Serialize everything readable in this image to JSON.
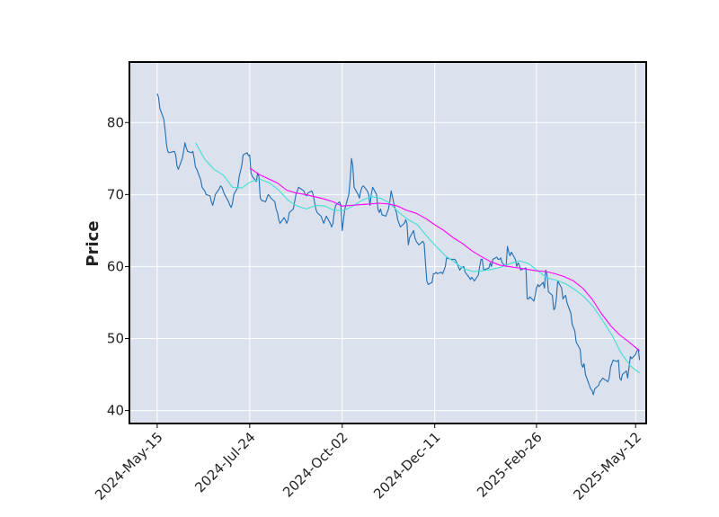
{
  "chart_data": {
    "type": "line",
    "title": "",
    "xlabel": "",
    "ylabel": "Price",
    "ylim": [
      38.2,
      88.4
    ],
    "xlim": [
      "2024-04-24",
      "2025-05-20"
    ],
    "x_tick_labels": [
      "2024-May-15",
      "2024-Jul-24",
      "2024-Oct-02",
      "2024-Dec-11",
      "2025-Feb-26",
      "2025-May-12"
    ],
    "x_tick_dates": [
      "2024-05-15",
      "2024-07-24",
      "2024-10-02",
      "2024-12-11",
      "2025-02-26",
      "2025-05-12"
    ],
    "y_ticks": [
      40,
      50,
      60,
      70,
      80
    ],
    "grid": true,
    "colors": {
      "background": "#dce1ee",
      "grid": "#ffffff",
      "frame": "#000000",
      "price": "#1f6fb4",
      "ma_short": "#40e0d0",
      "ma_long": "#ff00ff"
    },
    "series": [
      {
        "x": [
          "2024-05-15",
          "2024-05-16",
          "2024-05-17",
          "2024-05-20",
          "2024-05-21",
          "2024-05-22",
          "2024-05-23",
          "2024-05-24",
          "2024-05-28",
          "2024-05-29",
          "2024-05-30",
          "2024-05-31",
          "2024-06-03",
          "2024-06-04",
          "2024-06-05",
          "2024-06-06",
          "2024-06-07",
          "2024-06-10",
          "2024-06-11",
          "2024-06-12",
          "2024-06-13",
          "2024-06-14",
          "2024-06-17",
          "2024-06-18",
          "2024-06-20",
          "2024-06-21",
          "2024-06-24",
          "2024-06-25",
          "2024-06-26",
          "2024-06-27",
          "2024-06-28",
          "2024-07-01",
          "2024-07-02",
          "2024-07-03",
          "2024-07-05",
          "2024-07-08",
          "2024-07-09",
          "2024-07-10",
          "2024-07-11",
          "2024-07-12",
          "2024-07-15",
          "2024-07-16",
          "2024-07-17",
          "2024-07-18",
          "2024-07-19",
          "2024-07-22",
          "2024-07-23",
          "2024-07-24",
          "2024-07-25",
          "2024-07-26",
          "2024-07-29",
          "2024-07-30",
          "2024-07-31",
          "2024-08-01",
          "2024-08-02",
          "2024-08-05",
          "2024-08-06",
          "2024-08-07",
          "2024-08-08",
          "2024-08-09",
          "2024-08-12",
          "2024-08-13",
          "2024-08-14",
          "2024-08-15",
          "2024-08-16",
          "2024-08-19",
          "2024-08-20",
          "2024-08-21",
          "2024-08-22",
          "2024-08-23",
          "2024-08-26",
          "2024-08-27",
          "2024-08-28",
          "2024-08-29",
          "2024-08-30",
          "2024-09-03",
          "2024-09-04",
          "2024-09-05",
          "2024-09-06",
          "2024-09-09",
          "2024-09-10",
          "2024-09-11",
          "2024-09-12",
          "2024-09-13",
          "2024-09-16",
          "2024-09-17",
          "2024-09-18",
          "2024-09-19",
          "2024-09-20",
          "2024-09-23",
          "2024-09-24",
          "2024-09-25",
          "2024-09-26",
          "2024-09-27",
          "2024-09-30",
          "2024-10-01",
          "2024-10-02",
          "2024-10-03",
          "2024-10-04",
          "2024-10-07",
          "2024-10-08",
          "2024-10-09",
          "2024-10-10",
          "2024-10-11",
          "2024-10-14",
          "2024-10-15",
          "2024-10-16",
          "2024-10-17",
          "2024-10-18",
          "2024-10-21",
          "2024-10-22",
          "2024-10-23",
          "2024-10-24",
          "2024-10-25",
          "2024-10-28",
          "2024-10-29",
          "2024-10-30",
          "2024-10-31",
          "2024-11-01",
          "2024-11-04",
          "2024-11-05",
          "2024-11-06",
          "2024-11-07",
          "2024-11-08",
          "2024-11-11",
          "2024-11-12",
          "2024-11-13",
          "2024-11-14",
          "2024-11-15",
          "2024-11-18",
          "2024-11-19",
          "2024-11-20",
          "2024-11-21",
          "2024-11-22",
          "2024-11-25",
          "2024-11-26",
          "2024-11-27",
          "2024-11-29",
          "2024-12-02",
          "2024-12-03",
          "2024-12-04",
          "2024-12-05",
          "2024-12-06",
          "2024-12-09",
          "2024-12-10",
          "2024-12-11",
          "2024-12-12",
          "2024-12-13",
          "2024-12-16",
          "2024-12-17",
          "2024-12-18",
          "2024-12-19",
          "2024-12-20",
          "2024-12-23",
          "2024-12-24",
          "2024-12-26",
          "2024-12-27",
          "2024-12-30",
          "2024-12-31",
          "2025-01-02",
          "2025-01-03",
          "2025-01-06",
          "2025-01-07",
          "2025-01-08",
          "2025-01-10",
          "2025-01-13",
          "2025-01-14",
          "2025-01-15",
          "2025-01-16",
          "2025-01-17",
          "2025-01-21",
          "2025-01-22",
          "2025-01-23",
          "2025-01-24",
          "2025-01-27",
          "2025-01-28",
          "2025-01-29",
          "2025-01-30",
          "2025-01-31",
          "2025-02-03",
          "2025-02-04",
          "2025-02-05",
          "2025-02-06",
          "2025-02-07",
          "2025-02-10",
          "2025-02-11",
          "2025-02-12",
          "2025-02-13",
          "2025-02-14",
          "2025-02-18",
          "2025-02-19",
          "2025-02-20",
          "2025-02-21",
          "2025-02-24",
          "2025-02-25",
          "2025-02-26",
          "2025-02-27",
          "2025-02-28",
          "2025-03-03",
          "2025-03-04",
          "2025-03-05",
          "2025-03-06",
          "2025-03-07",
          "2025-03-10",
          "2025-03-11",
          "2025-03-12",
          "2025-03-13",
          "2025-03-14",
          "2025-03-17",
          "2025-03-18",
          "2025-03-19",
          "2025-03-20",
          "2025-03-21",
          "2025-03-24",
          "2025-03-25",
          "2025-03-26",
          "2025-03-27",
          "2025-03-28",
          "2025-03-31",
          "2025-04-01",
          "2025-04-02",
          "2025-04-03",
          "2025-04-04",
          "2025-04-07",
          "2025-04-08",
          "2025-04-09",
          "2025-04-10",
          "2025-04-11",
          "2025-04-14",
          "2025-04-15",
          "2025-04-16",
          "2025-04-17",
          "2025-04-21",
          "2025-04-22",
          "2025-04-23",
          "2025-04-24",
          "2025-04-25",
          "2025-04-28",
          "2025-04-29",
          "2025-04-30",
          "2025-05-01",
          "2025-05-02",
          "2025-05-05",
          "2025-05-06",
          "2025-05-07",
          "2025-05-08",
          "2025-05-09",
          "2025-05-12",
          "2025-05-13",
          "2025-05-14",
          "2025-05-15"
        ],
        "values": [
          84.0,
          83.5,
          82.0,
          80.5,
          79.0,
          77.0,
          76.0,
          75.8,
          76.0,
          75.5,
          74.0,
          73.5,
          75.0,
          76.0,
          77.2,
          76.5,
          76.0,
          75.8,
          76.0,
          75.0,
          73.8,
          73.5,
          72.0,
          71.0,
          70.5,
          70.0,
          69.8,
          69.0,
          68.5,
          69.2,
          70.0,
          70.8,
          71.2,
          71.0,
          70.0,
          69.0,
          68.5,
          68.2,
          68.8,
          70.0,
          71.0,
          72.5,
          73.2,
          74.0,
          75.5,
          75.8,
          75.4,
          75.5,
          73.0,
          72.5,
          71.8,
          73.0,
          72.5,
          69.5,
          69.2,
          69.0,
          69.5,
          70.0,
          69.8,
          69.5,
          69.0,
          68.0,
          67.5,
          66.5,
          66.0,
          66.8,
          66.5,
          66.0,
          66.5,
          67.5,
          68.0,
          69.0,
          70.0,
          70.5,
          71.0,
          70.5,
          70.0,
          69.8,
          70.2,
          70.5,
          70.0,
          69.0,
          68.0,
          67.5,
          67.0,
          66.5,
          66.0,
          66.5,
          67.0,
          66.0,
          65.5,
          66.0,
          67.5,
          68.5,
          69.0,
          68.5,
          65.0,
          66.5,
          68.0,
          70.0,
          72.0,
          75.0,
          74.0,
          71.0,
          70.0,
          69.5,
          70.5,
          71.0,
          71.2,
          70.5,
          70.0,
          68.5,
          70.0,
          71.0,
          70.0,
          68.0,
          67.5,
          68.0,
          67.2,
          67.0,
          67.5,
          68.0,
          69.0,
          70.5,
          68.0,
          67.5,
          66.5,
          66.0,
          65.5,
          66.0,
          66.5,
          66.0,
          63.0,
          64.0,
          65.0,
          64.0,
          63.5,
          63.0,
          63.5,
          63.2,
          60.5,
          58.0,
          57.5,
          57.8,
          59.0,
          59.0,
          59.2,
          59.0,
          59.2,
          59.0,
          59.5,
          60.0,
          61.2,
          61.0,
          61.0,
          61.0,
          60.8,
          59.5,
          59.8,
          60.0,
          59.2,
          58.5,
          58.2,
          58.5,
          58.0,
          58.8,
          60.0,
          61.0,
          61.0,
          59.5,
          59.8,
          60.5,
          60.0,
          61.0,
          61.3,
          61.0,
          61.0,
          61.2,
          60.5,
          60.0,
          62.8,
          62.0,
          61.5,
          62.0,
          61.0,
          60.0,
          60.5,
          60.2,
          59.5,
          59.8,
          55.5,
          55.5,
          55.8,
          55.2,
          56.0,
          57.0,
          57.5,
          57.2,
          57.8,
          57.0,
          59.5,
          58.8,
          56.5,
          56.0,
          54.0,
          54.2,
          55.5,
          58.0,
          57.0,
          55.5,
          55.8,
          56.0,
          55.0,
          53.5,
          52.0,
          51.5,
          51.0,
          49.5,
          48.5,
          46.5,
          46.0,
          46.5,
          45.0,
          43.5,
          43.0,
          42.8,
          42.2,
          43.0,
          43.5,
          44.0,
          44.2,
          44.5,
          44.0,
          44.5,
          46.0,
          46.5,
          47.0,
          46.8,
          47.0,
          44.5,
          44.2,
          45.0,
          45.5,
          44.5,
          46.0,
          47.5,
          47.2,
          47.8,
          48.3,
          48.5,
          47.0
        ]
      },
      {
        "x": [
          "2024-06-13",
          "2024-06-20",
          "2024-06-27",
          "2024-07-04",
          "2024-07-11",
          "2024-07-18",
          "2024-07-25",
          "2024-08-01",
          "2024-08-08",
          "2024-08-15",
          "2024-08-22",
          "2024-08-29",
          "2024-09-05",
          "2024-09-12",
          "2024-09-19",
          "2024-09-26",
          "2024-10-03",
          "2024-10-10",
          "2024-10-17",
          "2024-10-24",
          "2024-10-31",
          "2024-11-07",
          "2024-11-14",
          "2024-11-21",
          "2024-11-28",
          "2024-12-05",
          "2024-12-12",
          "2024-12-19",
          "2024-12-26",
          "2025-01-02",
          "2025-01-09",
          "2025-01-16",
          "2025-01-23",
          "2025-01-30",
          "2025-02-06",
          "2025-02-13",
          "2025-02-20",
          "2025-02-27",
          "2025-03-06",
          "2025-03-13",
          "2025-03-20",
          "2025-03-27",
          "2025-04-03",
          "2025-04-10",
          "2025-04-17",
          "2025-04-24",
          "2025-05-01",
          "2025-05-08",
          "2025-05-15"
        ],
        "values": [
          77.2,
          74.9,
          73.5,
          72.7,
          71.0,
          70.9,
          71.8,
          72.1,
          71.6,
          70.6,
          69.2,
          68.4,
          68.0,
          68.5,
          68.4,
          67.8,
          67.8,
          68.4,
          69.2,
          69.7,
          69.5,
          68.8,
          67.5,
          66.5,
          65.8,
          64.2,
          62.8,
          61.5,
          60.6,
          59.7,
          59.3,
          59.4,
          59.6,
          59.9,
          60.4,
          60.8,
          60.4,
          59.4,
          58.4,
          58.1,
          57.6,
          56.8,
          55.8,
          54.4,
          52.5,
          50.5,
          48.0,
          46.2,
          45.2
        ]
      },
      {
        "x": [
          "2024-07-24",
          "2024-07-31",
          "2024-08-07",
          "2024-08-14",
          "2024-08-21",
          "2024-08-28",
          "2024-09-04",
          "2024-09-11",
          "2024-09-18",
          "2024-09-25",
          "2024-10-02",
          "2024-10-09",
          "2024-10-16",
          "2024-10-23",
          "2024-10-30",
          "2024-11-06",
          "2024-11-13",
          "2024-11-20",
          "2024-11-27",
          "2024-12-04",
          "2024-12-11",
          "2024-12-18",
          "2024-12-25",
          "2025-01-01",
          "2025-01-08",
          "2025-01-15",
          "2025-01-22",
          "2025-01-29",
          "2025-02-05",
          "2025-02-12",
          "2025-02-19",
          "2025-02-26",
          "2025-03-05",
          "2025-03-12",
          "2025-03-19",
          "2025-03-26",
          "2025-04-02",
          "2025-04-09",
          "2025-04-16",
          "2025-04-23",
          "2025-04-30",
          "2025-05-07",
          "2025-05-15"
        ],
        "values": [
          73.7,
          72.8,
          72.2,
          71.6,
          70.6,
          70.2,
          70.0,
          69.7,
          69.4,
          69.0,
          68.4,
          68.5,
          68.6,
          68.7,
          68.8,
          68.7,
          68.4,
          67.8,
          67.4,
          66.7,
          65.8,
          65.0,
          64.0,
          63.2,
          62.2,
          61.4,
          60.7,
          60.2,
          60.0,
          59.8,
          59.6,
          59.4,
          59.3,
          59.0,
          58.6,
          58.0,
          57.0,
          55.5,
          53.5,
          51.8,
          50.5,
          49.5,
          48.3
        ]
      }
    ]
  }
}
